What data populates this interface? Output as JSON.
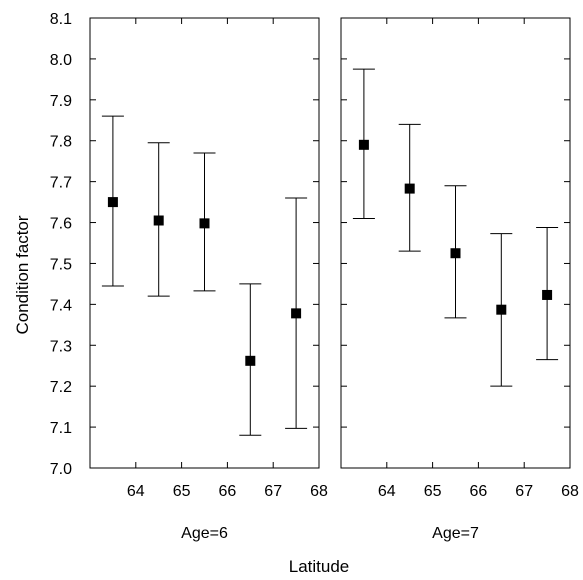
{
  "chart_data": {
    "type": "scatter",
    "subtype": "error-bar",
    "ylabel": "Condition factor",
    "xlabel": "Latitude",
    "ylim": [
      7.0,
      8.1
    ],
    "yticks": [
      "7.0",
      "7.1",
      "7.2",
      "7.3",
      "7.4",
      "7.5",
      "7.6",
      "7.7",
      "7.8",
      "7.9",
      "8.0",
      "8.1"
    ],
    "xlim": [
      63,
      68
    ],
    "xticks": [
      "64",
      "65",
      "66",
      "67",
      "68"
    ],
    "grid": false,
    "legend": "none",
    "marker": "filled-square",
    "color": "#000000",
    "panels": [
      {
        "label": "Age=6",
        "points": [
          {
            "x": 63.5,
            "mean": 7.65,
            "lower": 7.445,
            "upper": 7.86
          },
          {
            "x": 64.5,
            "mean": 7.605,
            "lower": 7.42,
            "upper": 7.795
          },
          {
            "x": 65.5,
            "mean": 7.598,
            "lower": 7.433,
            "upper": 7.77
          },
          {
            "x": 66.5,
            "mean": 7.262,
            "lower": 7.08,
            "upper": 7.45
          },
          {
            "x": 67.5,
            "mean": 7.378,
            "lower": 7.097,
            "upper": 7.66
          }
        ]
      },
      {
        "label": "Age=7",
        "points": [
          {
            "x": 63.5,
            "mean": 7.79,
            "lower": 7.61,
            "upper": 7.975
          },
          {
            "x": 64.5,
            "mean": 7.683,
            "lower": 7.53,
            "upper": 7.84
          },
          {
            "x": 65.5,
            "mean": 7.525,
            "lower": 7.367,
            "upper": 7.69
          },
          {
            "x": 66.5,
            "mean": 7.387,
            "lower": 7.2,
            "upper": 7.573
          },
          {
            "x": 67.5,
            "mean": 7.423,
            "lower": 7.265,
            "upper": 7.588
          }
        ]
      }
    ]
  }
}
